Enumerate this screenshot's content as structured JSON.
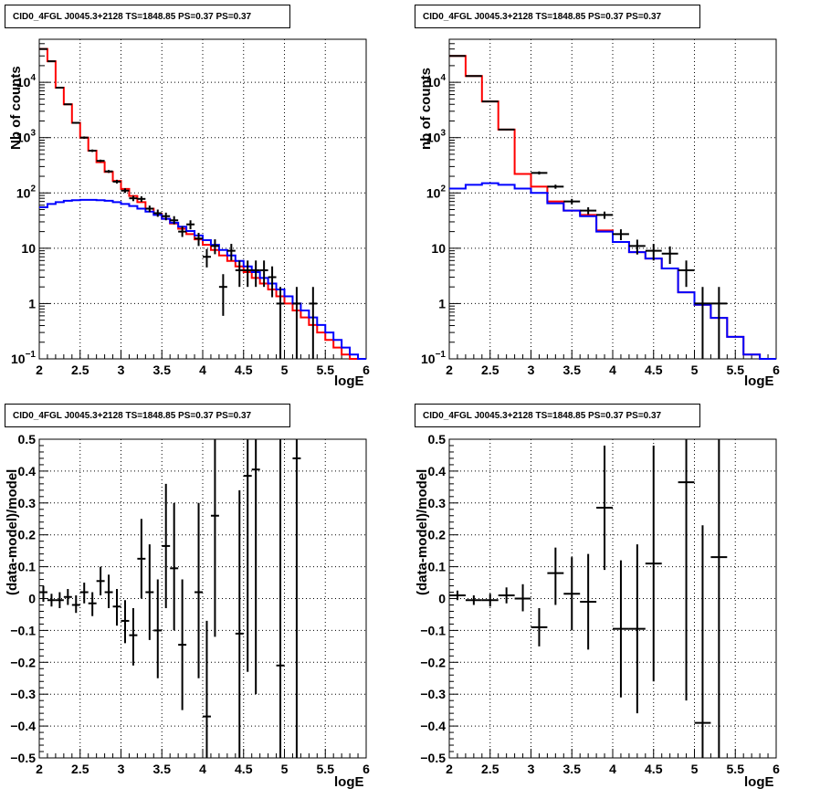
{
  "chart_data": [
    {
      "type": "histogram",
      "title": "CID0_4FGL J0045.3+2128 TS=1848.85 PS=0.37 PS=0.37",
      "xlabel": "logE",
      "ylabel": "Nb of counts",
      "xlim": [
        2,
        6
      ],
      "ylim": [
        0.1,
        60000
      ],
      "yscale": "log",
      "grid": true,
      "xticks": [
        "2",
        "2.5",
        "3",
        "3.5",
        "4",
        "4.5",
        "5",
        "5.5",
        "6"
      ],
      "yticks": [
        {
          "v": 0.1,
          "label": "10",
          "sup": "−1"
        },
        {
          "v": 1,
          "label": "1",
          "sup": ""
        },
        {
          "v": 10,
          "label": "10",
          "sup": ""
        },
        {
          "v": 100,
          "label": "10",
          "sup": "2"
        },
        {
          "v": 1000,
          "label": "10",
          "sup": "3"
        },
        {
          "v": 10000,
          "label": "10",
          "sup": "4"
        }
      ],
      "bin_width": 0.1,
      "series": [
        {
          "color": "#ff0000",
          "style": "step",
          "values": [
            40000,
            24000,
            8000,
            4000,
            1850,
            1000,
            580,
            360,
            240,
            165,
            118,
            88,
            68,
            52,
            42,
            34,
            28,
            22.5,
            18,
            14.5,
            11.5,
            9.3,
            7.4,
            5.9,
            4.7,
            3.7,
            2.9,
            2.3,
            1.8,
            1.35,
            1.0,
            0.75,
            0.56,
            0.41,
            0.3,
            0.22,
            0.16,
            0.12,
            0.1,
            0.1
          ]
        },
        {
          "color": "#0000ff",
          "style": "step",
          "values": [
            55,
            63,
            68,
            72,
            74,
            75,
            75,
            74,
            72,
            68,
            63,
            58,
            52,
            46,
            40,
            34,
            29,
            24.5,
            20.5,
            17,
            14,
            11.5,
            9.3,
            7.4,
            5.9,
            4.7,
            3.7,
            2.9,
            2.3,
            1.8,
            1.35,
            1.0,
            0.75,
            0.56,
            0.41,
            0.3,
            0.22,
            0.16,
            0.12,
            0.1
          ]
        }
      ],
      "points": [
        {
          "x": 2.05,
          "y": 40000,
          "lo": 39500,
          "hi": 40500
        },
        {
          "x": 2.15,
          "y": 24000,
          "lo": 23600,
          "hi": 24400
        },
        {
          "x": 2.25,
          "y": 8000,
          "lo": 7800,
          "hi": 8200
        },
        {
          "x": 2.35,
          "y": 4000,
          "lo": 3900,
          "hi": 4100
        },
        {
          "x": 2.45,
          "y": 1850,
          "lo": 1780,
          "hi": 1920
        },
        {
          "x": 2.55,
          "y": 1000,
          "lo": 950,
          "hi": 1050
        },
        {
          "x": 2.65,
          "y": 580,
          "lo": 550,
          "hi": 610
        },
        {
          "x": 2.75,
          "y": 380,
          "lo": 360,
          "hi": 400
        },
        {
          "x": 2.85,
          "y": 245,
          "lo": 230,
          "hi": 260
        },
        {
          "x": 2.95,
          "y": 160,
          "lo": 148,
          "hi": 173
        },
        {
          "x": 3.05,
          "y": 110,
          "lo": 100,
          "hi": 121
        },
        {
          "x": 3.15,
          "y": 80,
          "lo": 71,
          "hi": 89
        },
        {
          "x": 3.25,
          "y": 78,
          "lo": 69,
          "hi": 87
        },
        {
          "x": 3.35,
          "y": 52,
          "lo": 45,
          "hi": 59
        },
        {
          "x": 3.45,
          "y": 43,
          "lo": 37,
          "hi": 50
        },
        {
          "x": 3.55,
          "y": 38,
          "lo": 32,
          "hi": 44
        },
        {
          "x": 3.65,
          "y": 32,
          "lo": 27,
          "hi": 38
        },
        {
          "x": 3.75,
          "y": 20,
          "lo": 16,
          "hi": 25
        },
        {
          "x": 3.85,
          "y": 27,
          "lo": 22,
          "hi": 32
        },
        {
          "x": 3.95,
          "y": 15,
          "lo": 11,
          "hi": 19
        },
        {
          "x": 4.05,
          "y": 7,
          "lo": 4.5,
          "hi": 9.7
        },
        {
          "x": 4.15,
          "y": 11,
          "lo": 7.8,
          "hi": 14.5
        },
        {
          "x": 4.25,
          "y": 2,
          "lo": 0.6,
          "hi": 3.4
        },
        {
          "x": 4.35,
          "y": 9,
          "lo": 6,
          "hi": 12
        },
        {
          "x": 4.45,
          "y": 4,
          "lo": 2,
          "hi": 6
        },
        {
          "x": 4.55,
          "y": 4,
          "lo": 2,
          "hi": 6
        },
        {
          "x": 4.65,
          "y": 4,
          "lo": 2,
          "hi": 6
        },
        {
          "x": 4.75,
          "y": 4,
          "lo": 2,
          "hi": 6
        },
        {
          "x": 4.85,
          "y": 3,
          "lo": 1.3,
          "hi": 4.7
        },
        {
          "x": 4.95,
          "y": 1,
          "lo": 0.1,
          "hi": 2
        },
        {
          "x": 5.15,
          "y": 1,
          "lo": 0.1,
          "hi": 2
        },
        {
          "x": 5.35,
          "y": 1,
          "lo": 0.1,
          "hi": 2
        }
      ]
    },
    {
      "type": "histogram",
      "title": "CID0_4FGL J0045.3+2128 TS=1848.85 PS=0.37 PS=0.37",
      "xlabel": "logE",
      "ylabel": "nb of counts",
      "xlim": [
        2,
        6
      ],
      "ylim": [
        0.1,
        60000
      ],
      "yscale": "log",
      "grid": true,
      "xticks": [
        "2",
        "2.5",
        "3",
        "3.5",
        "4",
        "4.5",
        "5",
        "5.5",
        "6"
      ],
      "yticks": [
        {
          "v": 0.1,
          "label": "10",
          "sup": "−1"
        },
        {
          "v": 1,
          "label": "1",
          "sup": ""
        },
        {
          "v": 10,
          "label": "10",
          "sup": ""
        },
        {
          "v": 100,
          "label": "10",
          "sup": "2"
        },
        {
          "v": 1000,
          "label": "10",
          "sup": "3"
        },
        {
          "v": 10000,
          "label": "10",
          "sup": "4"
        }
      ],
      "bin_width": 0.2,
      "series": [
        {
          "color": "#ff0000",
          "style": "step",
          "values": [
            30000,
            13000,
            4500,
            1400,
            220,
            130,
            70,
            48,
            40,
            21,
            13,
            8.5,
            6.5,
            4.3,
            1.6,
            0.95,
            0.55,
            0.25,
            0.12,
            0.1
          ]
        },
        {
          "color": "#0000ff",
          "style": "step",
          "values": [
            120,
            140,
            150,
            140,
            120,
            100,
            65,
            48,
            38,
            20,
            13,
            8.5,
            6.5,
            4.3,
            1.6,
            0.95,
            0.55,
            0.25,
            0.12,
            0.1
          ]
        }
      ],
      "points": [
        {
          "x": 2.1,
          "y": 30000,
          "lo": 29700,
          "hi": 30300
        },
        {
          "x": 2.3,
          "y": 13000,
          "lo": 12800,
          "hi": 13200
        },
        {
          "x": 2.5,
          "y": 4500,
          "lo": 4400,
          "hi": 4600
        },
        {
          "x": 2.7,
          "y": 1400,
          "lo": 1360,
          "hi": 1440
        },
        {
          "x": 3.1,
          "y": 230,
          "lo": 215,
          "hi": 245
        },
        {
          "x": 3.3,
          "y": 130,
          "lo": 119,
          "hi": 141
        },
        {
          "x": 3.5,
          "y": 70,
          "lo": 62,
          "hi": 78
        },
        {
          "x": 3.7,
          "y": 48,
          "lo": 41,
          "hi": 55
        },
        {
          "x": 3.9,
          "y": 40,
          "lo": 34,
          "hi": 46
        },
        {
          "x": 4.1,
          "y": 18,
          "lo": 14,
          "hi": 22
        },
        {
          "x": 4.3,
          "y": 11,
          "lo": 7.7,
          "hi": 14.3
        },
        {
          "x": 4.5,
          "y": 9,
          "lo": 6,
          "hi": 12
        },
        {
          "x": 4.7,
          "y": 8,
          "lo": 5.2,
          "hi": 10.8
        },
        {
          "x": 4.9,
          "y": 4,
          "lo": 2,
          "hi": 6
        },
        {
          "x": 5.1,
          "y": 1,
          "lo": 0.1,
          "hi": 2
        },
        {
          "x": 5.3,
          "y": 1,
          "lo": 0.1,
          "hi": 2
        }
      ]
    },
    {
      "type": "scatter",
      "title": "CID0_4FGL J0045.3+2128 TS=1848.85 PS=0.37 PS=0.37",
      "xlabel": "logE",
      "ylabel": "(data-model)/model",
      "xlim": [
        2,
        6
      ],
      "ylim": [
        -0.5,
        0.5
      ],
      "yscale": "linear",
      "grid": true,
      "xticks": [
        "2",
        "2.5",
        "3",
        "3.5",
        "4",
        "4.5",
        "5",
        "5.5",
        "6"
      ],
      "yticks": [
        {
          "v": -0.5,
          "label": "−0.5"
        },
        {
          "v": -0.4,
          "label": "−0.4"
        },
        {
          "v": -0.3,
          "label": "−0.3"
        },
        {
          "v": -0.2,
          "label": "−0.2"
        },
        {
          "v": -0.1,
          "label": "−0.1"
        },
        {
          "v": 0,
          "label": "0"
        },
        {
          "v": 0.1,
          "label": "0.1"
        },
        {
          "v": 0.2,
          "label": "0.2"
        },
        {
          "v": 0.3,
          "label": "0.3"
        },
        {
          "v": 0.4,
          "label": "0.4"
        },
        {
          "v": 0.5,
          "label": "0.5"
        }
      ],
      "bin_width": 0.1,
      "points": [
        {
          "x": 2.05,
          "y": 0.02,
          "lo": -0.01,
          "hi": 0.04
        },
        {
          "x": 2.15,
          "y": -0.005,
          "lo": -0.025,
          "hi": 0.015
        },
        {
          "x": 2.25,
          "y": -0.005,
          "lo": -0.03,
          "hi": 0.02
        },
        {
          "x": 2.35,
          "y": 0.005,
          "lo": -0.02,
          "hi": 0.03
        },
        {
          "x": 2.45,
          "y": -0.02,
          "lo": -0.045,
          "hi": 0.01
        },
        {
          "x": 2.55,
          "y": 0.02,
          "lo": -0.015,
          "hi": 0.05
        },
        {
          "x": 2.65,
          "y": -0.015,
          "lo": -0.055,
          "hi": 0.02
        },
        {
          "x": 2.75,
          "y": 0.055,
          "lo": 0.01,
          "hi": 0.1
        },
        {
          "x": 2.85,
          "y": 0.02,
          "lo": -0.03,
          "hi": 0.075
        },
        {
          "x": 2.95,
          "y": -0.025,
          "lo": -0.085,
          "hi": 0.03
        },
        {
          "x": 3.05,
          "y": -0.07,
          "lo": -0.14,
          "hi": -0.005
        },
        {
          "x": 3.15,
          "y": -0.115,
          "lo": -0.21,
          "hi": -0.03
        },
        {
          "x": 3.25,
          "y": 0.125,
          "lo": 0.0,
          "hi": 0.25
        },
        {
          "x": 3.35,
          "y": 0.02,
          "lo": -0.13,
          "hi": 0.17
        },
        {
          "x": 3.45,
          "y": -0.1,
          "lo": -0.25,
          "hi": 0.06
        },
        {
          "x": 3.55,
          "y": 0.165,
          "lo": -0.03,
          "hi": 0.36
        },
        {
          "x": 3.65,
          "y": 0.095,
          "lo": -0.1,
          "hi": 0.3
        },
        {
          "x": 3.75,
          "y": -0.145,
          "lo": -0.35,
          "hi": 0.06
        },
        {
          "x": 3.95,
          "y": 0.02,
          "lo": -0.25,
          "hi": 0.3
        },
        {
          "x": 4.05,
          "y": -0.37,
          "lo": -0.65,
          "hi": -0.07
        },
        {
          "x": 4.15,
          "y": 0.26,
          "lo": -0.12,
          "hi": 0.65
        },
        {
          "x": 4.45,
          "y": -0.11,
          "lo": -0.55,
          "hi": 0.34
        },
        {
          "x": 4.55,
          "y": 0.385,
          "lo": -0.23,
          "hi": 1.0
        },
        {
          "x": 4.65,
          "y": 0.405,
          "lo": -0.3,
          "hi": 1.0
        },
        {
          "x": 4.95,
          "y": -0.21,
          "lo": -0.9,
          "hi": 0.55
        },
        {
          "x": 5.15,
          "y": 0.44,
          "lo": -0.5,
          "hi": 1.4
        }
      ]
    },
    {
      "type": "scatter",
      "title": "CID0_4FGL J0045.3+2128 TS=1848.85 PS=0.37 PS=0.37",
      "xlabel": "logE",
      "ylabel": "(data-model)/model",
      "xlim": [
        2,
        6
      ],
      "ylim": [
        -0.5,
        0.5
      ],
      "yscale": "linear",
      "grid": true,
      "xticks": [
        "2",
        "2.5",
        "3",
        "3.5",
        "4",
        "4.5",
        "5",
        "5.5",
        "6"
      ],
      "yticks": [
        {
          "v": -0.5,
          "label": "−0.5"
        },
        {
          "v": -0.4,
          "label": "−0.4"
        },
        {
          "v": -0.3,
          "label": "−0.3"
        },
        {
          "v": -0.2,
          "label": "−0.2"
        },
        {
          "v": -0.1,
          "label": "−0.1"
        },
        {
          "v": 0,
          "label": "0"
        },
        {
          "v": 0.1,
          "label": "0.1"
        },
        {
          "v": 0.2,
          "label": "0.2"
        },
        {
          "v": 0.3,
          "label": "0.3"
        },
        {
          "v": 0.4,
          "label": "0.4"
        },
        {
          "v": 0.5,
          "label": "0.5"
        }
      ],
      "bin_width": 0.2,
      "points": [
        {
          "x": 2.1,
          "y": 0.01,
          "lo": -0.005,
          "hi": 0.025
        },
        {
          "x": 2.3,
          "y": -0.005,
          "lo": -0.02,
          "hi": 0.01
        },
        {
          "x": 2.5,
          "y": -0.005,
          "lo": -0.025,
          "hi": 0.015
        },
        {
          "x": 2.7,
          "y": 0.01,
          "lo": -0.015,
          "hi": 0.035
        },
        {
          "x": 2.9,
          "y": 0.0,
          "lo": -0.04,
          "hi": 0.045
        },
        {
          "x": 3.1,
          "y": -0.09,
          "lo": -0.15,
          "hi": -0.03
        },
        {
          "x": 3.3,
          "y": 0.08,
          "lo": -0.02,
          "hi": 0.16
        },
        {
          "x": 3.5,
          "y": 0.015,
          "lo": -0.1,
          "hi": 0.13
        },
        {
          "x": 3.7,
          "y": -0.01,
          "lo": -0.16,
          "hi": 0.14
        },
        {
          "x": 3.9,
          "y": 0.285,
          "lo": 0.09,
          "hi": 0.48
        },
        {
          "x": 4.1,
          "y": -0.095,
          "lo": -0.31,
          "hi": 0.12
        },
        {
          "x": 4.3,
          "y": -0.095,
          "lo": -0.36,
          "hi": 0.17
        },
        {
          "x": 4.5,
          "y": 0.11,
          "lo": -0.26,
          "hi": 0.48
        },
        {
          "x": 4.9,
          "y": 0.365,
          "lo": -0.32,
          "hi": 1.0
        },
        {
          "x": 5.1,
          "y": -0.39,
          "lo": -1.0,
          "hi": 0.23
        },
        {
          "x": 5.3,
          "y": 0.13,
          "lo": -0.6,
          "hi": 0.9
        }
      ]
    }
  ]
}
